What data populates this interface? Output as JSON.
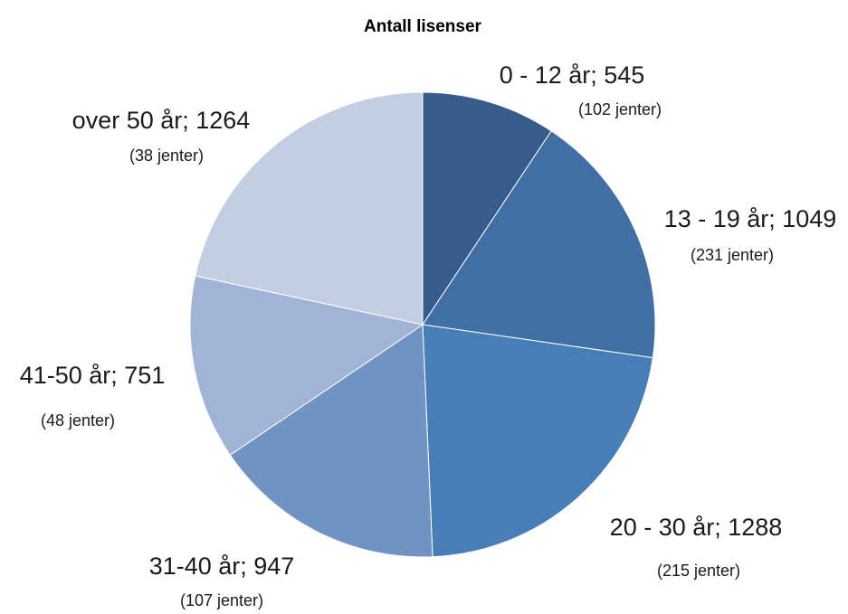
{
  "chart_data": {
    "type": "pie",
    "title": "Antall lisenser",
    "slices": [
      {
        "label": "0 - 12 år; 545",
        "value": 545,
        "note": "(102 jenter)",
        "color": "#375c8c"
      },
      {
        "label": "13 - 19 år; 1049",
        "value": 1049,
        "note": "(231 jenter)",
        "color": "#426fa3"
      },
      {
        "label": "20 - 30 år; 1288",
        "value": 1288,
        "note": "(215 jenter)",
        "color": "#477eb8"
      },
      {
        "label": "31-40 år; 947",
        "value": 947,
        "note": "(107 jenter)",
        "color": "#7193c4"
      },
      {
        "label": "41-50 år; 751",
        "value": 751,
        "note": "(48 jenter)",
        "color": "#a1b4d6"
      },
      {
        "label": "over 50 år; 1264",
        "value": 1264,
        "note": "(38 jenter)",
        "color": "#c3cee2"
      }
    ],
    "legend": "none"
  }
}
